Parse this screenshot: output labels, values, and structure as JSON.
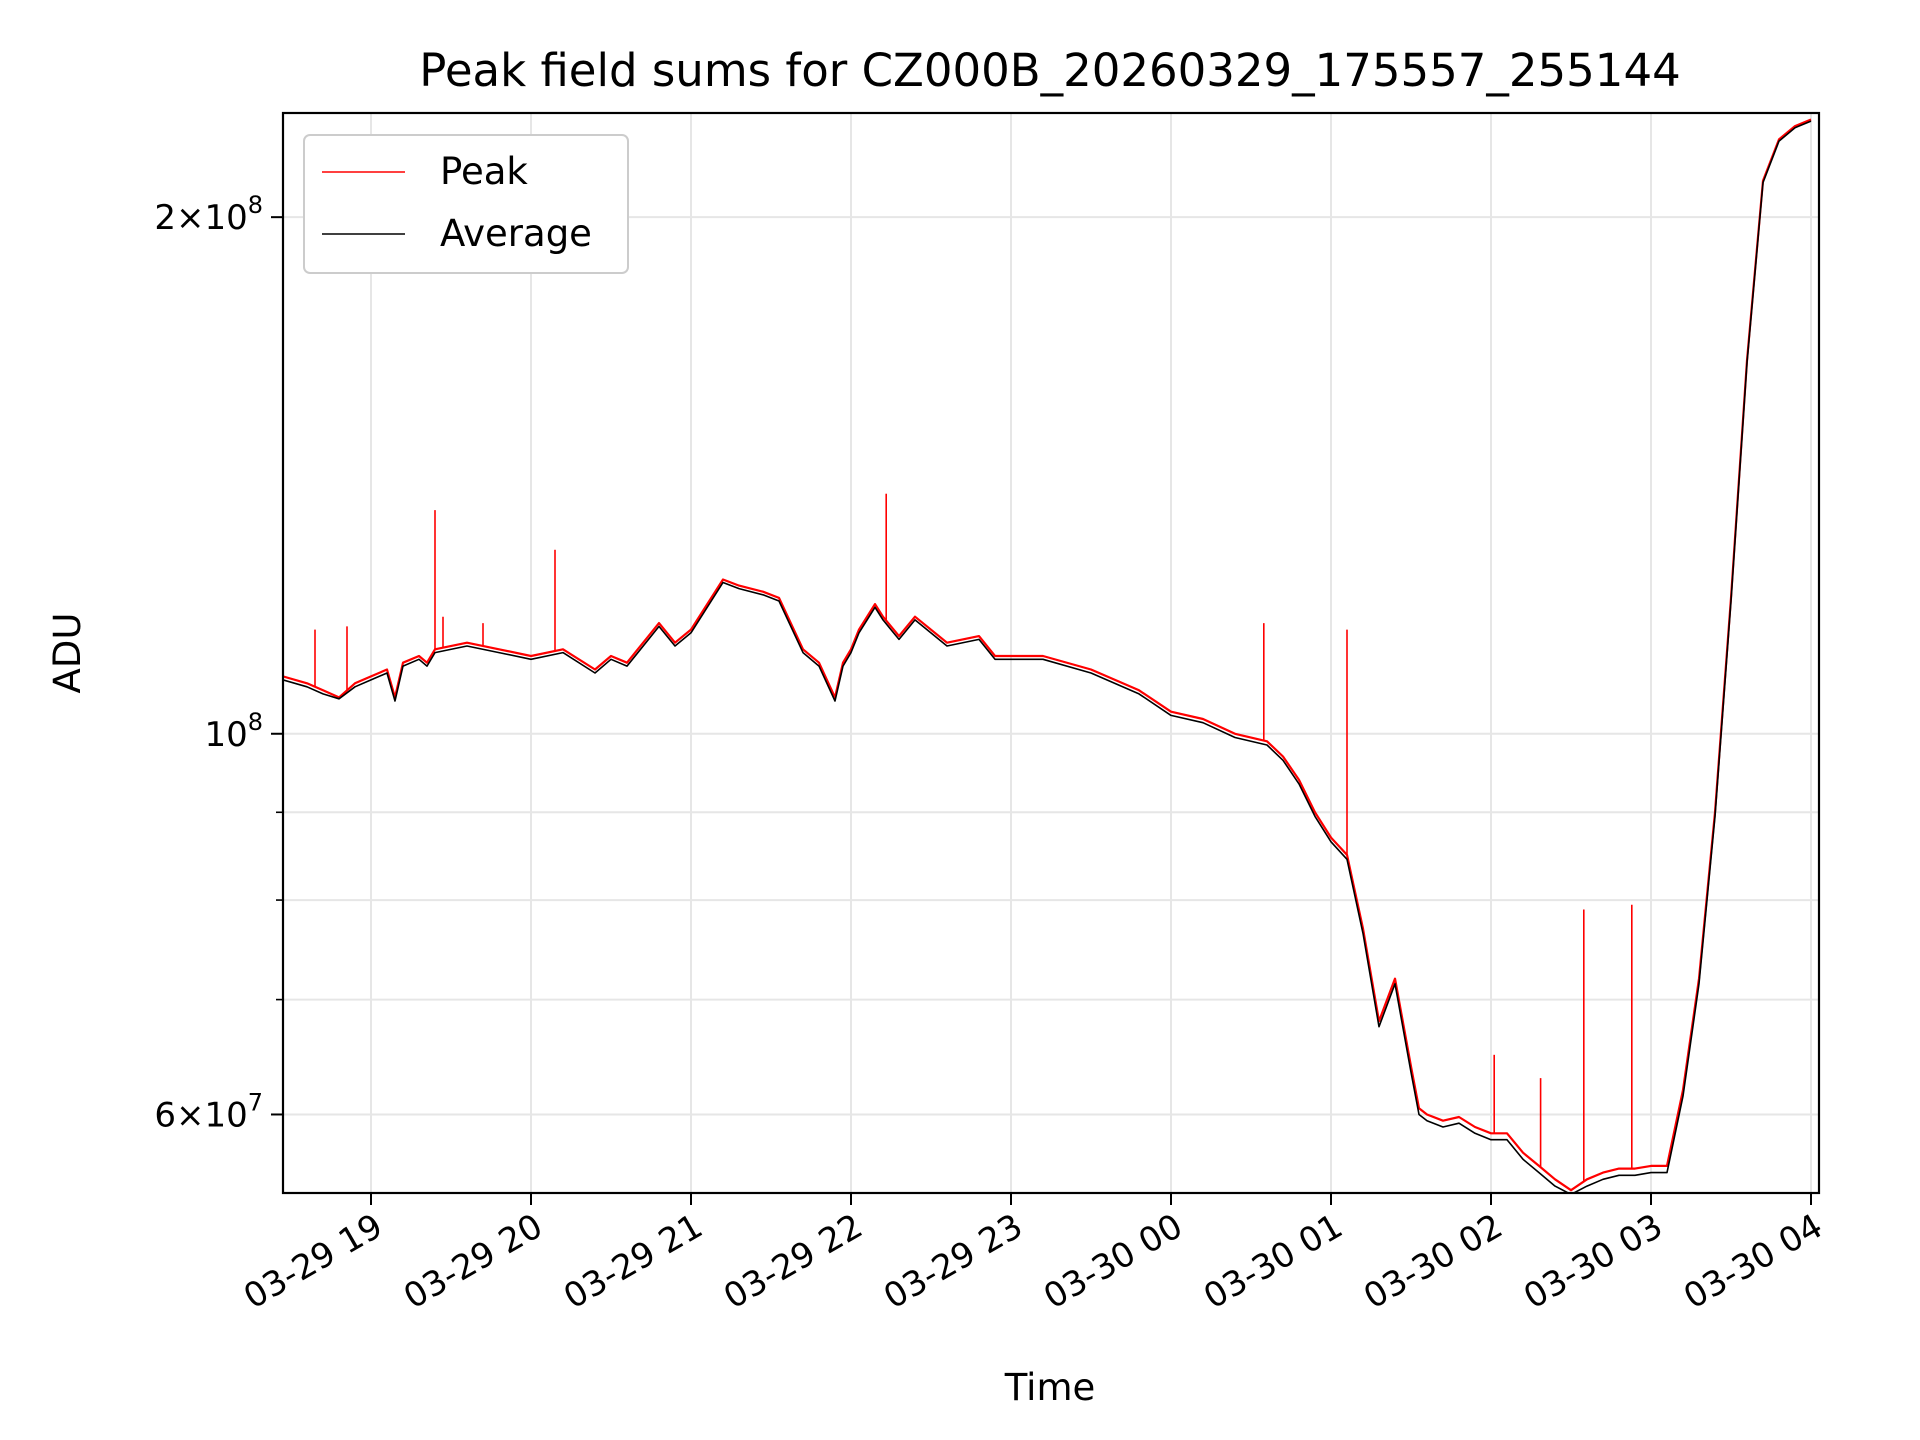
{
  "chart_data": {
    "type": "line",
    "title": "Peak field sums for CZ000B_20260329_175557_255144",
    "xlabel": "Time",
    "ylabel": "ADU",
    "yscale": "log",
    "grid": true,
    "legend_position": "top-left",
    "x_unit": "hours after 03-29 18:00",
    "xlim": [
      0.45,
      10.05
    ],
    "ylim": [
      54000000,
      230000000
    ],
    "x_ticks": [
      {
        "value": 1,
        "label": "03-29 19"
      },
      {
        "value": 2,
        "label": "03-29 20"
      },
      {
        "value": 3,
        "label": "03-29 21"
      },
      {
        "value": 4,
        "label": "03-29 22"
      },
      {
        "value": 5,
        "label": "03-29 23"
      },
      {
        "value": 6,
        "label": "03-30 00"
      },
      {
        "value": 7,
        "label": "03-30 01"
      },
      {
        "value": 8,
        "label": "03-30 02"
      },
      {
        "value": 9,
        "label": "03-30 03"
      },
      {
        "value": 10,
        "label": "03-30 04"
      }
    ],
    "y_major_ticks": [
      {
        "value": 60000000,
        "mantissa": "6",
        "exponent": "7"
      },
      {
        "value": 100000000,
        "mantissa": "",
        "exponent": "8"
      },
      {
        "value": 200000000,
        "mantissa": "2",
        "exponent": "8"
      }
    ],
    "y_minor_ticks": [
      70000000,
      80000000,
      90000000
    ],
    "series": [
      {
        "name": "Peak",
        "color": "#ff0000",
        "x": [
          0.45,
          0.6,
          0.7,
          0.8,
          0.9,
          1.0,
          1.1,
          1.15,
          1.2,
          1.3,
          1.35,
          1.4,
          1.6,
          1.8,
          2.0,
          2.2,
          2.4,
          2.5,
          2.6,
          2.8,
          2.9,
          3.0,
          3.2,
          3.3,
          3.45,
          3.55,
          3.7,
          3.8,
          3.9,
          3.95,
          4.0,
          4.05,
          4.15,
          4.2,
          4.3,
          4.4,
          4.6,
          4.8,
          4.9,
          5.2,
          5.5,
          5.8,
          6.0,
          6.2,
          6.4,
          6.6,
          6.7,
          6.8,
          6.9,
          7.0,
          7.1,
          7.2,
          7.3,
          7.4,
          7.5,
          7.55,
          7.6,
          7.7,
          7.8,
          7.9,
          8.0,
          8.1,
          8.2,
          8.3,
          8.4,
          8.5,
          8.6,
          8.7,
          8.8,
          8.9,
          9.0,
          9.1,
          9.2,
          9.3,
          9.4,
          9.5,
          9.6,
          9.7,
          9.8,
          9.9,
          10.0
        ],
        "y": [
          108000000,
          107000000,
          106000000,
          105000000,
          107000000,
          108000000,
          109000000,
          105000000,
          110000000,
          111000000,
          110000000,
          112000000,
          113000000,
          112000000,
          111000000,
          112000000,
          109000000,
          111000000,
          110000000,
          116000000,
          113000000,
          115000000,
          123000000,
          122000000,
          121000000,
          120000000,
          112000000,
          110000000,
          105000000,
          110000000,
          112000000,
          115000000,
          119000000,
          117000000,
          114000000,
          117000000,
          113000000,
          114000000,
          111000000,
          111000000,
          109000000,
          106000000,
          103000000,
          102000000,
          100000000,
          99000000,
          97000000,
          94000000,
          90000000,
          87000000,
          85000000,
          77000000,
          68000000,
          72000000,
          64000000,
          60500000,
          60000000,
          59500000,
          59800000,
          59000000,
          58500000,
          58500000,
          57000000,
          56000000,
          55000000,
          54200000,
          55000000,
          55500000,
          55800000,
          55800000,
          56000000,
          56000000,
          62000000,
          72000000,
          90000000,
          120000000,
          165000000,
          210000000,
          222000000,
          226000000,
          228000000
        ]
      },
      {
        "name": "Average",
        "color": "#000000",
        "x": [
          0.45,
          0.6,
          0.7,
          0.8,
          0.9,
          1.0,
          1.1,
          1.15,
          1.2,
          1.3,
          1.35,
          1.4,
          1.6,
          1.8,
          2.0,
          2.2,
          2.4,
          2.5,
          2.6,
          2.8,
          2.9,
          3.0,
          3.2,
          3.3,
          3.45,
          3.55,
          3.7,
          3.8,
          3.9,
          3.95,
          4.0,
          4.05,
          4.15,
          4.2,
          4.3,
          4.4,
          4.6,
          4.8,
          4.9,
          5.2,
          5.5,
          5.8,
          6.0,
          6.2,
          6.4,
          6.6,
          6.7,
          6.8,
          6.9,
          7.0,
          7.1,
          7.2,
          7.3,
          7.4,
          7.5,
          7.55,
          7.6,
          7.7,
          7.8,
          7.9,
          8.0,
          8.1,
          8.2,
          8.3,
          8.4,
          8.5,
          8.6,
          8.7,
          8.8,
          8.9,
          9.0,
          9.1,
          9.2,
          9.3,
          9.4,
          9.5,
          9.6,
          9.7,
          9.8,
          9.9,
          10.0
        ],
        "y": [
          107500000,
          106500000,
          105500000,
          104800000,
          106500000,
          107500000,
          108500000,
          104500000,
          109500000,
          110500000,
          109500000,
          111500000,
          112500000,
          111500000,
          110500000,
          111500000,
          108500000,
          110500000,
          109500000,
          115500000,
          112500000,
          114500000,
          122500000,
          121500000,
          120500000,
          119500000,
          111500000,
          109500000,
          104500000,
          109500000,
          111500000,
          114500000,
          118500000,
          116500000,
          113500000,
          116500000,
          112500000,
          113500000,
          110500000,
          110500000,
          108500000,
          105500000,
          102500000,
          101500000,
          99500000,
          98500000,
          96500000,
          93500000,
          89500000,
          86500000,
          84500000,
          76500000,
          67500000,
          71500000,
          63500000,
          60000000,
          59500000,
          59000000,
          59300000,
          58500000,
          58000000,
          58000000,
          56500000,
          55500000,
          54500000,
          53900000,
          54500000,
          55000000,
          55300000,
          55300000,
          55500000,
          55500000,
          61500000,
          71500000,
          89500000,
          119500000,
          164500000,
          209500000,
          221500000,
          225500000,
          227500000
        ]
      }
    ],
    "spikes": [
      {
        "x": 0.65,
        "y": 115000000
      },
      {
        "x": 0.85,
        "y": 115500000
      },
      {
        "x": 1.4,
        "y": 135000000
      },
      {
        "x": 1.45,
        "y": 117000000
      },
      {
        "x": 1.7,
        "y": 116000000
      },
      {
        "x": 2.15,
        "y": 128000000
      },
      {
        "x": 4.22,
        "y": 138000000
      },
      {
        "x": 6.58,
        "y": 116000000
      },
      {
        "x": 7.1,
        "y": 115000000
      },
      {
        "x": 8.02,
        "y": 65000000
      },
      {
        "x": 8.31,
        "y": 63000000
      },
      {
        "x": 8.58,
        "y": 79000000
      },
      {
        "x": 8.88,
        "y": 79500000
      },
      {
        "x": 9.25,
        "y": 67000000
      }
    ]
  }
}
